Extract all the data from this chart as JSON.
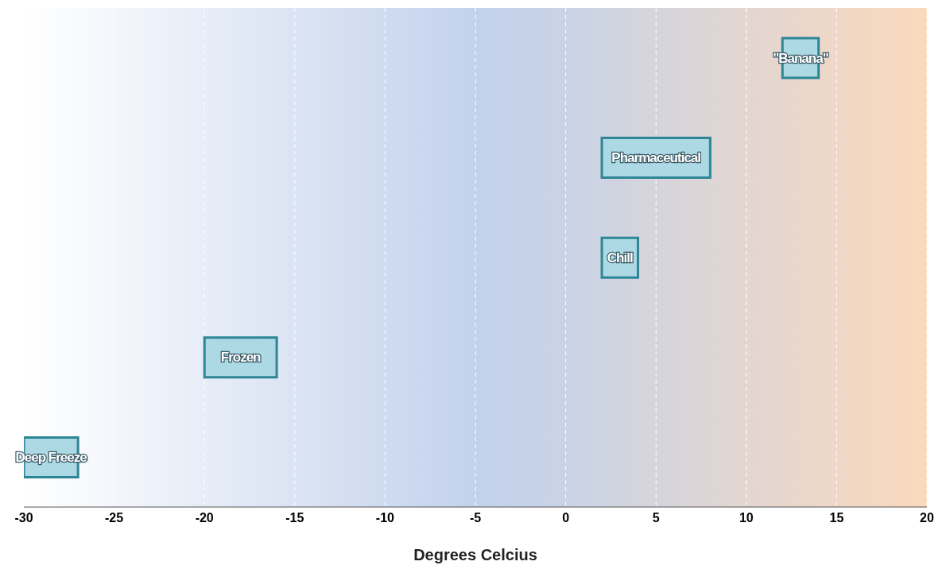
{
  "chart_data": {
    "type": "bar",
    "orientation": "horizontal",
    "xlabel": "Degrees Celcius",
    "categories": [
      "\"Banana\"",
      "Pharmaceutical",
      "Chill",
      "Frozen",
      "Deep Freeze"
    ],
    "base": [
      12,
      2,
      2,
      -20,
      -30
    ],
    "values": [
      2,
      6,
      2,
      4,
      3
    ],
    "color": "#acd9e3",
    "xlim": [
      -30,
      20
    ],
    "xticks": [
      -30,
      -25,
      -20,
      -15,
      -10,
      -5,
      0,
      5,
      10,
      15,
      20
    ],
    "grid": "x",
    "tick_labels": "x"
  }
}
